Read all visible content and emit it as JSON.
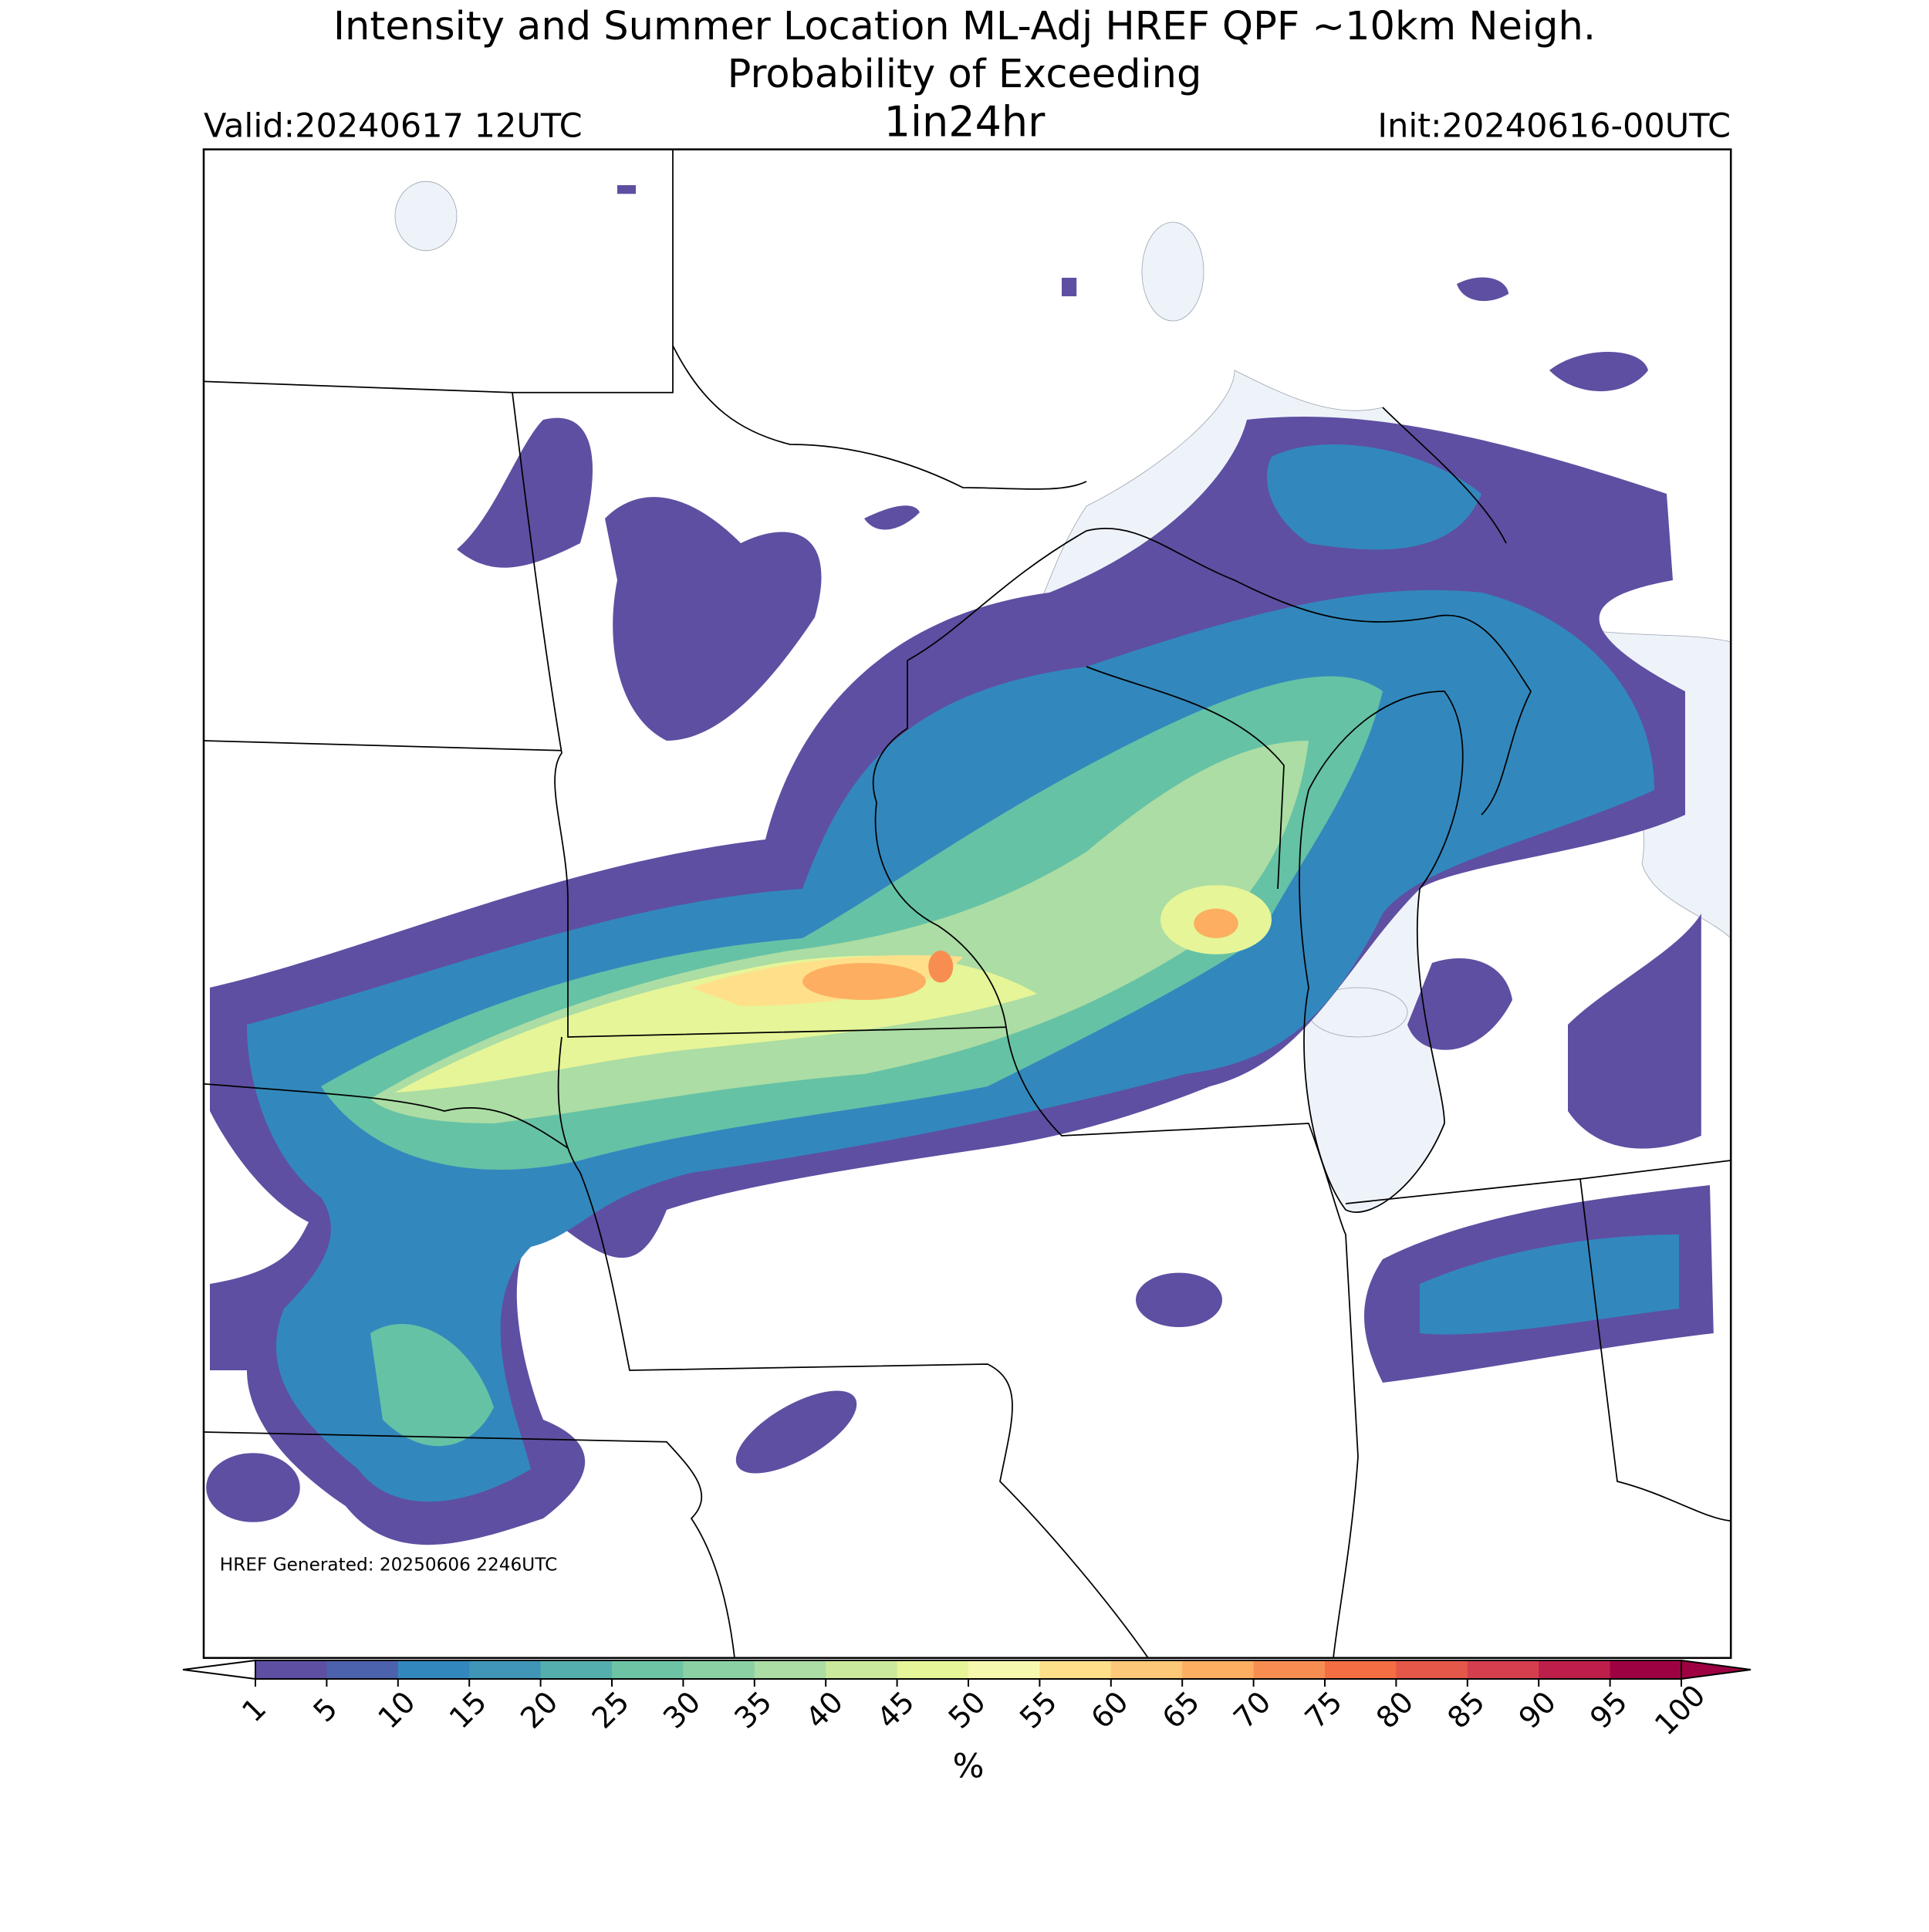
{
  "header": {
    "title": "Intensity and Summer Location ML-Adj HREF QPF ~10km Neigh.",
    "subtitle": "Probability of Exceeding",
    "period": "1in24hr",
    "valid": "Valid:20240617 12UTC",
    "init": "Init:20240616-00UTC"
  },
  "map": {
    "note": "HREF Generated: 20250606 2246UTC"
  },
  "colorbar": {
    "label": "%",
    "ticks": [
      1,
      5,
      10,
      15,
      20,
      25,
      30,
      35,
      40,
      45,
      50,
      55,
      60,
      65,
      70,
      75,
      80,
      85,
      90,
      95,
      100
    ],
    "colors": [
      "#5e4fa2",
      "#4d62ac",
      "#3288bd",
      "#3f96b7",
      "#55aeae",
      "#6cc4a4",
      "#8bd0a4",
      "#abdda4",
      "#cbe99d",
      "#e6f598",
      "#f7f8b0",
      "#fee08b",
      "#fdc877",
      "#fdae61",
      "#f88d52",
      "#f46d43",
      "#e55749",
      "#d53e4f",
      "#bd1f4a",
      "#9e0142"
    ],
    "under_color": "#ffffff",
    "over_color": "#9e0142"
  }
}
